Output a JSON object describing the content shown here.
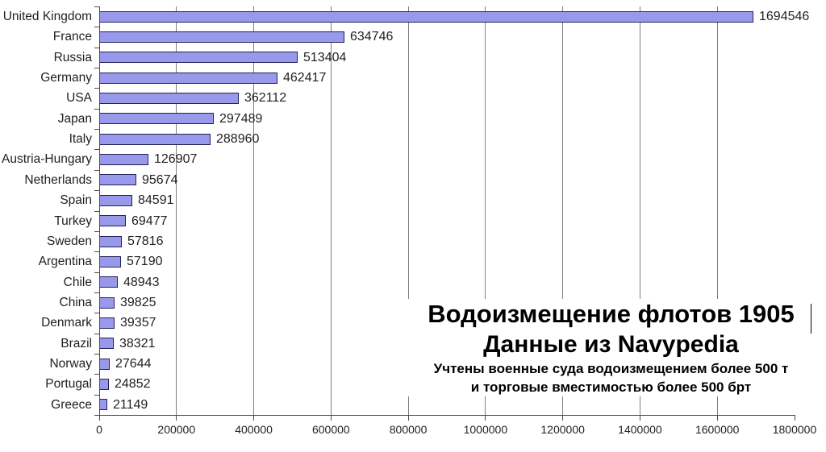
{
  "chart_data": {
    "type": "bar",
    "orientation": "horizontal",
    "title": "Водоизмещение флотов 1905",
    "subtitle": "Данные из Navypedia",
    "note_line1": "Учтены военные суда водоизмещением более 500 т",
    "note_line2": "и торговые вместимостью более 500 брт",
    "categories": [
      "United Kingdom",
      "France",
      "Russia",
      "Germany",
      "USA",
      "Japan",
      "Italy",
      "Austria-Hungary",
      "Netherlands",
      "Spain",
      "Turkey",
      "Sweden",
      "Argentina",
      "Chile",
      "China",
      "Denmark",
      "Brazil",
      "Norway",
      "Portugal",
      "Greece"
    ],
    "values": [
      1694546,
      634746,
      513404,
      462417,
      362112,
      297489,
      288960,
      126907,
      95674,
      84591,
      69477,
      57816,
      57190,
      48943,
      39825,
      39357,
      38321,
      27644,
      24852,
      21149
    ],
    "xlabel": "",
    "ylabel": "",
    "xlim": [
      0,
      1800000
    ],
    "x_ticks": [
      0,
      200000,
      400000,
      600000,
      800000,
      1000000,
      1200000,
      1400000,
      1600000,
      1800000
    ],
    "x_tick_labels": [
      "0",
      "200000",
      "400000",
      "600000",
      "800000",
      "1000000",
      "1200000",
      "1400000",
      "1600000",
      "1800000"
    ],
    "grid": "vertical-gridlines-200000-to-1600000",
    "legend": "none",
    "value_labels_shown": true,
    "colors": {
      "bar_fill": "#9999EC",
      "bar_border": "#21215A",
      "gridline": "#7F7F7F",
      "axis": "#4D4D4D",
      "text": "#1F1F1F",
      "title_text": "#000000",
      "background": "#FFFFFF"
    }
  }
}
